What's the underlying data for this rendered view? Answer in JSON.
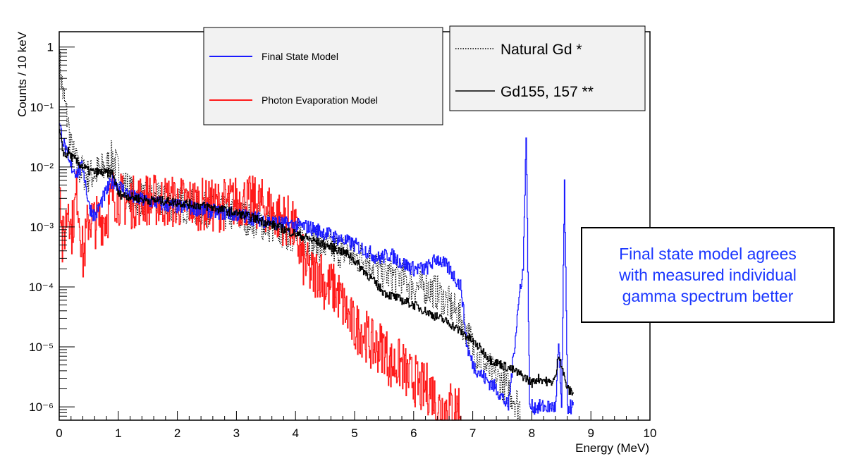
{
  "chart_data": {
    "type": "line",
    "title": "",
    "xlabel": "Energy (MeV)",
    "ylabel": "Counts / 10 keV",
    "xlim": [
      0,
      10
    ],
    "ylim": [
      6e-07,
      1.8
    ],
    "yscale": "log",
    "grid": false,
    "x_ticks": [
      "0",
      "1",
      "2",
      "3",
      "4",
      "5",
      "6",
      "7",
      "8",
      "9",
      "10"
    ],
    "y_ticks": [
      {
        "value": 1,
        "label": "1"
      },
      {
        "value": 0.1,
        "label": "10⁻¹"
      },
      {
        "value": 0.01,
        "label": "10⁻²"
      },
      {
        "value": 0.001,
        "label": "10⁻³"
      },
      {
        "value": 0.0001,
        "label": "10⁻⁴"
      },
      {
        "value": 1e-05,
        "label": "10⁻⁵"
      },
      {
        "value": 1e-06,
        "label": "10⁻⁶"
      }
    ],
    "legends": [
      {
        "placement": "top-center",
        "entries": [
          {
            "name": "Final State Model",
            "color": "#1a1aff",
            "dash": "solid"
          },
          {
            "name": "Photon Evaporation Model",
            "color": "#ff1a1a",
            "dash": "solid"
          }
        ]
      },
      {
        "placement": "top-right",
        "entries": [
          {
            "name": "Natural Gd *",
            "color": "#000000",
            "dash": "dotted"
          },
          {
            "name": "Gd155, 157 **",
            "color": "#000000",
            "dash": "solid"
          }
        ]
      }
    ],
    "series": [
      {
        "name": "Final State Model",
        "color": "#1a1aff",
        "x": [
          0.0,
          0.05,
          0.1,
          0.15,
          0.2,
          0.3,
          0.4,
          0.5,
          0.6,
          0.7,
          0.8,
          0.9,
          1.0,
          1.2,
          1.4,
          1.6,
          1.8,
          2.0,
          2.2,
          2.5,
          2.8,
          3.0,
          3.3,
          3.6,
          3.9,
          4.2,
          4.5,
          4.8,
          5.0,
          5.2,
          5.4,
          5.6,
          5.8,
          6.0,
          6.2,
          6.4,
          6.6,
          6.8,
          6.85,
          6.9,
          7.0,
          7.2,
          7.4,
          7.6,
          7.8,
          7.85,
          7.9,
          7.93,
          7.96,
          8.0,
          8.2,
          8.4,
          8.45,
          8.5,
          8.55,
          8.6,
          8.65,
          8.7
        ],
        "y": [
          0.05,
          0.03,
          0.02,
          0.012,
          0.01,
          0.008,
          0.01,
          0.0022,
          0.0015,
          0.0025,
          0.004,
          0.006,
          0.005,
          0.0032,
          0.0028,
          0.0026,
          0.0023,
          0.0022,
          0.0021,
          0.0019,
          0.0017,
          0.0016,
          0.0014,
          0.0012,
          0.0011,
          0.001,
          0.0008,
          0.0006,
          0.0005,
          0.0004,
          0.0003,
          0.00035,
          0.00025,
          0.0002,
          0.0002,
          0.0003,
          0.0002,
          0.0001,
          3e-05,
          1e-05,
          5e-06,
          3e-06,
          2e-06,
          1e-06,
          0.0001,
          0.0002,
          0.035,
          0.0002,
          1e-06,
          1e-06,
          1e-06,
          1e-06,
          1e-05,
          1e-06,
          0.0055,
          1e-06,
          1e-06,
          1e-06
        ]
      },
      {
        "name": "Photon Evaporation Model",
        "color": "#ff1a1a",
        "x": [
          0.0,
          0.05,
          0.1,
          0.15,
          0.2,
          0.3,
          0.4,
          0.5,
          0.6,
          0.8,
          0.9,
          1.0,
          1.2,
          1.4,
          1.6,
          1.8,
          2.0,
          2.3,
          2.6,
          2.9,
          3.1,
          3.3,
          3.5,
          3.7,
          3.9,
          4.0,
          4.1,
          4.2,
          4.3,
          4.4,
          4.5,
          4.6,
          4.7,
          4.8,
          4.9,
          5.0,
          5.1,
          5.2,
          5.3,
          5.4,
          5.5,
          5.6,
          5.7,
          5.8,
          5.9,
          6.0,
          6.1,
          6.2,
          6.3,
          6.4,
          6.5,
          6.6,
          6.7,
          6.8
        ],
        "y": [
          0.01,
          0.0005,
          0.001,
          0.003,
          0.0008,
          0.004,
          0.0003,
          0.0015,
          0.0012,
          0.0015,
          0.0035,
          0.003,
          0.0025,
          0.003,
          0.0028,
          0.0027,
          0.0026,
          0.0025,
          0.0022,
          0.0025,
          0.0028,
          0.0025,
          0.0022,
          0.0015,
          0.0012,
          0.0008,
          0.0003,
          0.0002,
          0.00015,
          0.0002,
          0.0001,
          0.0001,
          8e-05,
          5e-05,
          3e-05,
          2e-05,
          2e-05,
          1.5e-05,
          1e-05,
          1e-05,
          1e-05,
          5e-06,
          5e-06,
          5e-06,
          3e-06,
          3e-06,
          2e-06,
          2e-06,
          2e-06,
          1e-06,
          1e-06,
          1e-06,
          1e-06,
          1e-06
        ]
      },
      {
        "name": "Natural Gd *",
        "color": "#000000",
        "dash": "dotted",
        "x": [
          0.0,
          0.05,
          0.1,
          0.15,
          0.2,
          0.3,
          0.4,
          0.5,
          0.6,
          0.8,
          0.9,
          1.0,
          1.1,
          1.3,
          1.6,
          2.0,
          2.4,
          2.8,
          3.2,
          3.6,
          4.0,
          4.4,
          4.8,
          5.0,
          5.2,
          5.4,
          5.6,
          5.8,
          6.0,
          6.2,
          6.4,
          6.6,
          6.8,
          7.0,
          7.2,
          7.4,
          7.6,
          7.8
        ],
        "y": [
          0.6,
          0.2,
          0.1,
          0.05,
          0.02,
          0.01,
          0.008,
          0.007,
          0.008,
          0.01,
          0.015,
          0.008,
          0.005,
          0.003,
          0.0028,
          0.0024,
          0.002,
          0.0017,
          0.0014,
          0.001,
          0.0007,
          0.0005,
          0.0004,
          0.0003,
          0.0003,
          0.0002,
          0.00015,
          0.00015,
          0.0001,
          0.0001,
          8e-05,
          5e-05,
          3e-05,
          1e-05,
          5e-06,
          3e-06,
          2e-06,
          1e-06
        ]
      },
      {
        "name": "Gd155, 157 **",
        "color": "#000000",
        "dash": "solid",
        "x": [
          0.0,
          0.05,
          0.1,
          0.15,
          0.2,
          0.3,
          0.5,
          0.7,
          0.9,
          1.0,
          1.2,
          1.5,
          1.8,
          2.1,
          2.5,
          2.9,
          3.3,
          3.7,
          4.1,
          4.5,
          4.9,
          5.3,
          5.5,
          5.8,
          6.0,
          6.3,
          6.6,
          6.9,
          7.1,
          7.3,
          7.5,
          7.7,
          7.9,
          8.0,
          8.1,
          8.2,
          8.3,
          8.4,
          8.45,
          8.5,
          8.55,
          8.6,
          8.65,
          8.7
        ],
        "y": [
          0.04,
          0.02,
          0.015,
          0.018,
          0.015,
          0.012,
          0.0085,
          0.008,
          0.008,
          0.0035,
          0.0032,
          0.0028,
          0.0027,
          0.0025,
          0.0022,
          0.0018,
          0.0014,
          0.001,
          0.0007,
          0.0005,
          0.00035,
          0.00013,
          8e-05,
          6e-05,
          5e-05,
          3.5e-05,
          2.5e-05,
          1.5e-05,
          1e-05,
          6e-06,
          5e-06,
          4e-06,
          3e-06,
          2.5e-06,
          3e-06,
          2.8e-06,
          2.5e-06,
          3e-06,
          8e-06,
          5e-06,
          3e-06,
          2e-06,
          1.8e-06,
          1.8e-06
        ]
      }
    ],
    "annotations": [
      {
        "lines": [
          "Final state model agrees",
          "with measured individual",
          "gamma spectrum better"
        ],
        "color": "#1b37ff",
        "placement": "right"
      }
    ]
  }
}
